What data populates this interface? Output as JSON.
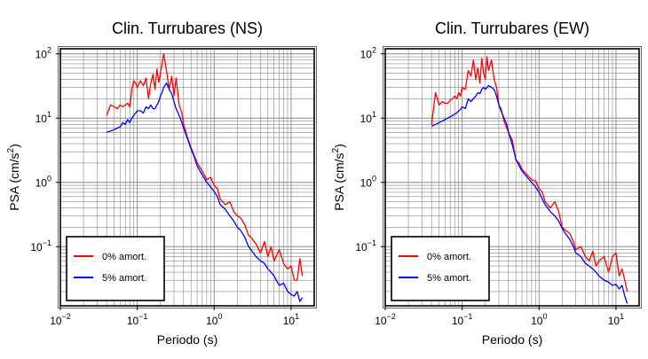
{
  "chart_data": [
    {
      "type": "line",
      "title": "Clin. Turrubares (NS)",
      "xlabel": "Periodo (s)",
      "ylabel_main": "PSA (cm/s",
      "ylabel_sup": "2",
      "ylabel_end": ")",
      "x_scale": "log",
      "y_scale": "log",
      "xlim": [
        0.01,
        20
      ],
      "ylim": [
        0.012,
        120
      ],
      "grid": true,
      "legend_position": "lower-left",
      "x_ticks": [
        {
          "base": "10",
          "exp": "−2"
        },
        {
          "base": "10",
          "exp": "−1"
        },
        {
          "base": "10",
          "exp": "0"
        },
        {
          "base": "10",
          "exp": "1"
        }
      ],
      "y_ticks": [
        {
          "base": "10",
          "exp": "−1"
        },
        {
          "base": "10",
          "exp": "0"
        },
        {
          "base": "10",
          "exp": "1"
        },
        {
          "base": "10",
          "exp": "2"
        }
      ],
      "series": [
        {
          "name": "0% amort.",
          "color": "#ff0000",
          "x": [
            0.04,
            0.045,
            0.05,
            0.055,
            0.06,
            0.065,
            0.07,
            0.075,
            0.08,
            0.085,
            0.09,
            0.095,
            0.1,
            0.11,
            0.12,
            0.13,
            0.14,
            0.15,
            0.16,
            0.17,
            0.18,
            0.19,
            0.2,
            0.21,
            0.22,
            0.24,
            0.26,
            0.28,
            0.3,
            0.32,
            0.35,
            0.38,
            0.4,
            0.45,
            0.5,
            0.55,
            0.6,
            0.7,
            0.8,
            0.9,
            1.0,
            1.1,
            1.2,
            1.4,
            1.6,
            1.8,
            2.0,
            2.2,
            2.5,
            2.8,
            3.0,
            3.5,
            4.0,
            4.5,
            5.0,
            5.5,
            6.0,
            7.0,
            8.0,
            9.0,
            10.0,
            11.0,
            12.0,
            13.0,
            14.0
          ],
          "values": [
            11,
            16,
            15,
            14,
            16,
            15,
            16,
            17,
            15,
            28,
            38,
            35,
            30,
            38,
            32,
            42,
            20,
            35,
            48,
            28,
            58,
            36,
            50,
            70,
            100,
            55,
            28,
            45,
            22,
            42,
            16,
            12,
            8,
            5,
            3.5,
            2.6,
            2.0,
            1.5,
            1.1,
            1.2,
            0.9,
            0.8,
            0.55,
            0.45,
            0.5,
            0.35,
            0.3,
            0.28,
            0.22,
            0.15,
            0.14,
            0.11,
            0.08,
            0.12,
            0.07,
            0.1,
            0.06,
            0.09,
            0.055,
            0.045,
            0.05,
            0.03,
            0.03,
            0.065,
            0.035
          ]
        },
        {
          "name": "5% amort.",
          "color": "#0000ff",
          "x": [
            0.04,
            0.045,
            0.05,
            0.055,
            0.06,
            0.065,
            0.07,
            0.075,
            0.08,
            0.085,
            0.09,
            0.095,
            0.1,
            0.11,
            0.12,
            0.13,
            0.14,
            0.15,
            0.16,
            0.17,
            0.18,
            0.19,
            0.2,
            0.21,
            0.22,
            0.24,
            0.26,
            0.28,
            0.3,
            0.32,
            0.35,
            0.38,
            0.4,
            0.45,
            0.5,
            0.55,
            0.6,
            0.7,
            0.8,
            0.9,
            1.0,
            1.1,
            1.2,
            1.4,
            1.6,
            1.8,
            2.0,
            2.2,
            2.5,
            2.8,
            3.0,
            3.5,
            4.0,
            4.5,
            5.0,
            5.5,
            6.0,
            7.0,
            8.0,
            9.0,
            10.0,
            11.0,
            12.0,
            13.0,
            14.0
          ],
          "values": [
            6,
            6.3,
            6.6,
            7,
            7.3,
            8.5,
            8,
            9.5,
            8.5,
            10,
            11,
            12,
            13,
            13,
            12,
            15,
            14,
            16,
            14,
            14,
            16,
            18,
            22,
            25,
            30,
            35,
            28,
            24,
            18,
            14,
            11,
            8.5,
            7,
            4.8,
            3.3,
            2.5,
            1.8,
            1.3,
            1.0,
            0.85,
            0.72,
            0.6,
            0.45,
            0.38,
            0.3,
            0.25,
            0.2,
            0.18,
            0.14,
            0.1,
            0.09,
            0.07,
            0.06,
            0.055,
            0.045,
            0.04,
            0.035,
            0.025,
            0.027,
            0.02,
            0.018,
            0.017,
            0.02,
            0.014,
            0.016
          ]
        }
      ]
    },
    {
      "type": "line",
      "title": "Clin. Turrubares (EW)",
      "xlabel": "Periodo (s)",
      "ylabel_main": "PSA (cm/s",
      "ylabel_sup": "2",
      "ylabel_end": ")",
      "x_scale": "log",
      "y_scale": "log",
      "xlim": [
        0.01,
        20
      ],
      "ylim": [
        0.012,
        120
      ],
      "grid": true,
      "legend_position": "lower-left",
      "x_ticks": [
        {
          "base": "10",
          "exp": "−2"
        },
        {
          "base": "10",
          "exp": "−1"
        },
        {
          "base": "10",
          "exp": "0"
        },
        {
          "base": "10",
          "exp": "1"
        }
      ],
      "y_ticks": [
        {
          "base": "10",
          "exp": "−1"
        },
        {
          "base": "10",
          "exp": "0"
        },
        {
          "base": "10",
          "exp": "1"
        },
        {
          "base": "10",
          "exp": "2"
        }
      ],
      "series": [
        {
          "name": "0% amort.",
          "color": "#ff0000",
          "x": [
            0.04,
            0.045,
            0.05,
            0.055,
            0.06,
            0.065,
            0.07,
            0.075,
            0.08,
            0.085,
            0.09,
            0.095,
            0.1,
            0.11,
            0.12,
            0.13,
            0.14,
            0.15,
            0.16,
            0.17,
            0.18,
            0.19,
            0.2,
            0.21,
            0.22,
            0.24,
            0.26,
            0.28,
            0.3,
            0.32,
            0.35,
            0.38,
            0.4,
            0.45,
            0.5,
            0.55,
            0.6,
            0.7,
            0.8,
            0.9,
            1.0,
            1.1,
            1.2,
            1.4,
            1.6,
            1.8,
            2.0,
            2.2,
            2.5,
            2.8,
            3.0,
            3.5,
            4.0,
            4.5,
            5.0,
            5.5,
            6.0,
            7.0,
            8.0,
            9.0,
            10.0,
            11.0,
            12.0,
            13.0,
            14.0
          ],
          "values": [
            8,
            25,
            16,
            18,
            17,
            17,
            19,
            20,
            22,
            20,
            25,
            22,
            30,
            28,
            55,
            45,
            80,
            40,
            60,
            35,
            85,
            50,
            40,
            90,
            55,
            80,
            40,
            30,
            16,
            14,
            9,
            7,
            6,
            4.5,
            2.2,
            2.0,
            1.6,
            1.3,
            1.1,
            1.05,
            0.8,
            0.7,
            0.5,
            0.4,
            0.5,
            0.35,
            0.2,
            0.18,
            0.16,
            0.12,
            0.09,
            0.1,
            0.07,
            0.06,
            0.085,
            0.05,
            0.06,
            0.07,
            0.04,
            0.07,
            0.08,
            0.035,
            0.045,
            0.03,
            0.02
          ]
        },
        {
          "name": "5% amort.",
          "color": "#0000ff",
          "x": [
            0.04,
            0.045,
            0.05,
            0.055,
            0.06,
            0.065,
            0.07,
            0.075,
            0.08,
            0.085,
            0.09,
            0.095,
            0.1,
            0.11,
            0.12,
            0.13,
            0.14,
            0.15,
            0.16,
            0.17,
            0.18,
            0.19,
            0.2,
            0.21,
            0.22,
            0.24,
            0.26,
            0.28,
            0.3,
            0.32,
            0.35,
            0.38,
            0.4,
            0.45,
            0.5,
            0.55,
            0.6,
            0.7,
            0.8,
            0.9,
            1.0,
            1.1,
            1.2,
            1.4,
            1.6,
            1.8,
            2.0,
            2.2,
            2.5,
            2.8,
            3.0,
            3.5,
            4.0,
            4.5,
            5.0,
            5.5,
            6.0,
            7.0,
            8.0,
            9.0,
            10.0,
            11.0,
            12.0,
            13.0,
            14.0
          ],
          "values": [
            7.5,
            8,
            8.5,
            9,
            9.5,
            10,
            10.5,
            11,
            11.5,
            12,
            13,
            13.5,
            15,
            14,
            20,
            18,
            20,
            22,
            25,
            24,
            28,
            30,
            28,
            30,
            32,
            30,
            28,
            22,
            16,
            13,
            10,
            8,
            6,
            3.8,
            2.3,
            1.8,
            1.5,
            1.2,
            1.0,
            0.85,
            0.7,
            0.55,
            0.45,
            0.35,
            0.3,
            0.25,
            0.19,
            0.16,
            0.13,
            0.1,
            0.08,
            0.07,
            0.055,
            0.05,
            0.045,
            0.04,
            0.035,
            0.03,
            0.028,
            0.025,
            0.026,
            0.022,
            0.025,
            0.017,
            0.013
          ]
        }
      ]
    }
  ]
}
